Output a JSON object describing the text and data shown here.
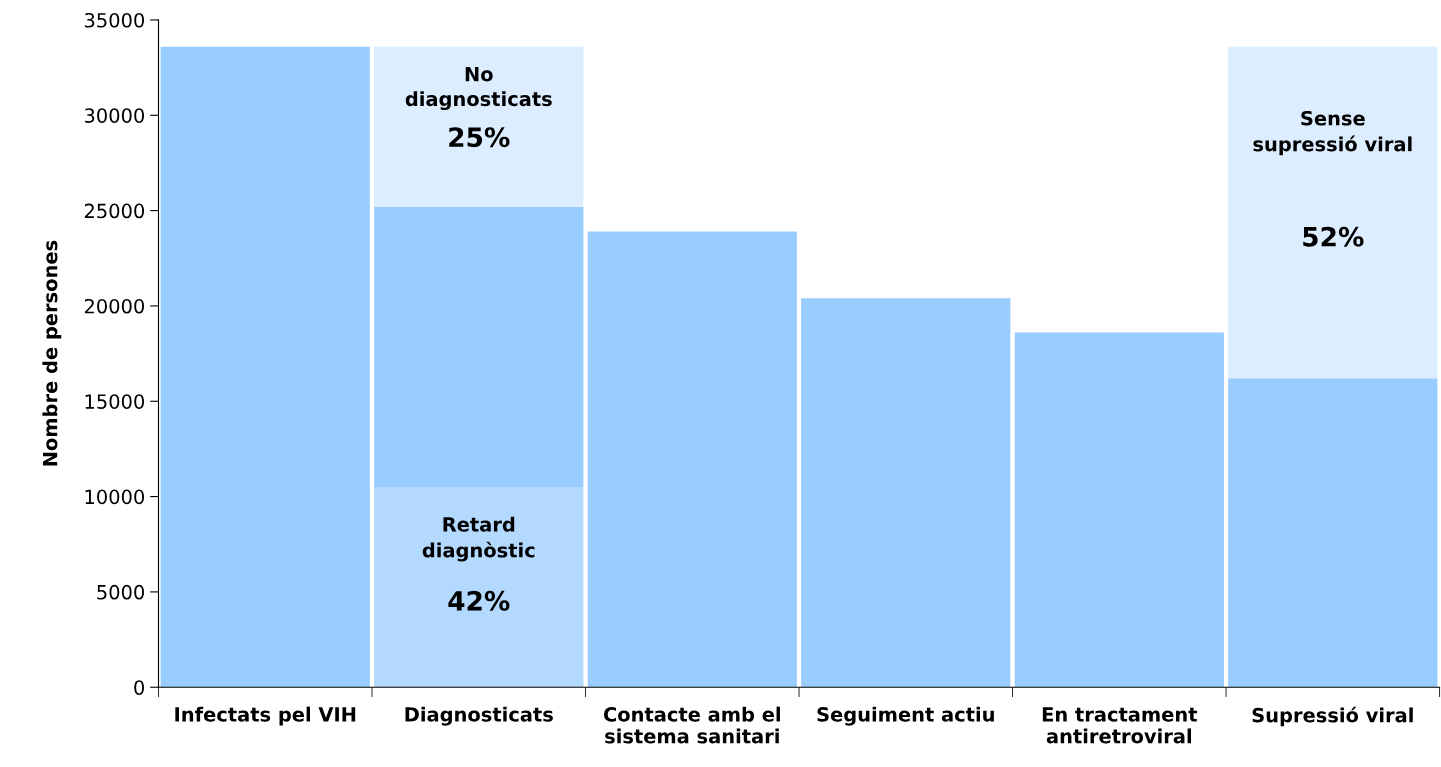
{
  "chart_data": {
    "type": "bar",
    "stacked": true,
    "ylabel": "Nombre de persones",
    "categories": [
      "Infectats pel VIH",
      "Diagnosticats",
      "Contacte amb el\nsistema sanitari",
      "Seguiment actiu",
      "En tractament\nantiretroviral",
      "Supressió viral"
    ],
    "series": [
      {
        "color": "#b3d9ff",
        "values": [
          0,
          10500,
          0,
          0,
          0,
          0
        ]
      },
      {
        "color": "#99ccff",
        "values": [
          33600,
          14700,
          23900,
          20400,
          18600,
          16200
        ]
      },
      {
        "color": "#dcedff",
        "values": [
          0,
          8400,
          0,
          0,
          0,
          17400
        ]
      }
    ],
    "ylim": [
      0,
      35000
    ],
    "yticks": [
      0,
      5000,
      10000,
      15000,
      20000,
      25000,
      30000,
      35000
    ],
    "grid": false,
    "legend": false,
    "annotations": [
      "No\ndiagnosticats",
      "25%",
      "Retard\ndiagnòstic",
      "42%",
      "Sense\nsupressió viral",
      "52%"
    ]
  }
}
